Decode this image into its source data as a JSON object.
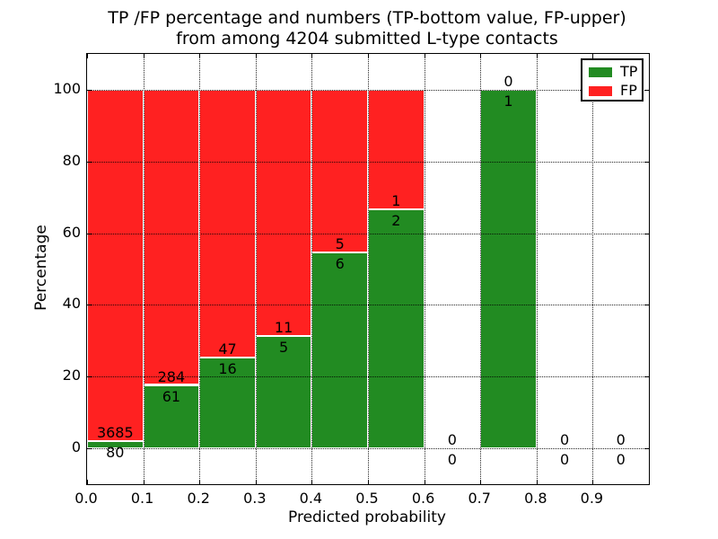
{
  "figure": {
    "title_line1": "TP /FP percentage and numbers (TP-bottom value, FP-upper)",
    "title_line2": "from among 4204 submitted L-type contacts"
  },
  "chart_data": {
    "type": "bar",
    "stacked": true,
    "title": "TP /FP percentage and numbers (TP-bottom value, FP-upper)\nfrom among 4204 submitted L-type contacts",
    "xlabel": "Predicted probability",
    "ylabel": "Percentage",
    "total_submitted_contacts": 4204,
    "bin_starts": [
      0.0,
      0.1,
      0.2,
      0.3,
      0.4,
      0.5,
      0.6,
      0.7,
      0.8,
      0.9
    ],
    "bin_width": 0.1,
    "series": [
      {
        "name": "TP",
        "color": "#228B22",
        "counts": [
          80,
          61,
          16,
          5,
          6,
          2,
          0,
          1,
          0,
          0
        ]
      },
      {
        "name": "FP",
        "color": "#FF2121",
        "counts": [
          3685,
          284,
          47,
          11,
          5,
          1,
          0,
          0,
          0,
          0
        ]
      }
    ],
    "tp_percent_approx": [
      2.1,
      17.7,
      25.4,
      31.3,
      54.5,
      66.7,
      0.0,
      100.0,
      0.0,
      0.0
    ],
    "bars_show": "percentage of each bin total; TP bottom (green), FP stacked on top (red) to 100%",
    "x_ticks": [
      "0.0",
      "0.1",
      "0.2",
      "0.3",
      "0.4",
      "0.5",
      "0.6",
      "0.7",
      "0.8",
      "0.9"
    ],
    "x_tick_values": [
      0.0,
      0.1,
      0.2,
      0.3,
      0.4,
      0.5,
      0.6,
      0.7,
      0.8,
      0.9
    ],
    "y_ticks": [
      0,
      20,
      40,
      60,
      80,
      100
    ],
    "xlim": [
      0.0,
      1.0
    ],
    "ylim": [
      -10,
      110
    ],
    "grid": "dotted black at all x and y ticks",
    "bar_edge_color": "#FFFFFF",
    "legend": {
      "position": "upper right",
      "entries": [
        "TP",
        "FP"
      ]
    }
  }
}
